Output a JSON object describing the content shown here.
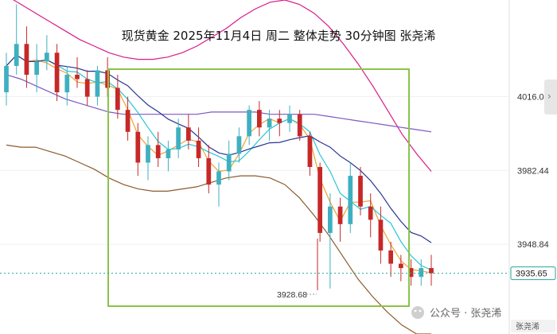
{
  "title": "现货黄金 2025年11月4日 周二 整体走势 30分钟图 张尧浠",
  "watermark": {
    "text": "公众号 · 张尧浠",
    "logo": "张尧浠"
  },
  "colors": {
    "up": "#3fb0c0",
    "down": "#c62828",
    "ma_fast": "#f0a030",
    "ma_mid": "#26c6da",
    "ma_slow": "#283593",
    "ma_long": "#7e57c2",
    "band_upper": "#d81b8c",
    "band_lower": "#8d5a2b",
    "box": "#8bc34a",
    "last_price": "#26a69a"
  },
  "chart_data": {
    "type": "candlestick",
    "title": "现货黄金 2025年11月4日 周二 整体走势 30分钟图 张尧浠",
    "y_axis_ticks": [
      "4016.04",
      "3982.44",
      "3948.84"
    ],
    "last_price": "3935.65",
    "annotation_low": "3928.68",
    "ylim": [
      3908,
      4060
    ],
    "bollinger_upper": [
      4062,
      4058,
      4054,
      4050,
      4046,
      4042,
      4039,
      4036,
      4034,
      4033,
      4033,
      4034,
      4036,
      4039,
      4043,
      4047,
      4052,
      4056,
      4059,
      4060,
      4058,
      4054,
      4048,
      4040,
      4031,
      4021,
      4010,
      3999,
      3990,
      3982
    ],
    "bollinger_middle": [
      4026,
      4024,
      4021,
      4018,
      4015,
      4013,
      4011,
      4009,
      4008,
      4008,
      4008,
      4008,
      4008,
      4008,
      4009,
      4009,
      4009,
      4009,
      4008,
      4008,
      4008,
      4008,
      4007,
      4006,
      4005,
      4004,
      4003,
      4002,
      4001,
      4000
    ],
    "bollinger_lower": [
      3994,
      3993,
      3993,
      3991,
      3989,
      3986,
      3983,
      3979,
      3976,
      3974,
      3973,
      3973,
      3974,
      3975,
      3977,
      3979,
      3980,
      3980,
      3979,
      3976,
      3970,
      3962,
      3953,
      3943,
      3933,
      3925,
      3918,
      3912,
      3908,
      3908
    ],
    "candles": [
      {
        "o": 4018,
        "h": 4036,
        "l": 4012,
        "c": 4030
      },
      {
        "o": 4030,
        "h": 4058,
        "l": 4026,
        "c": 4040
      },
      {
        "o": 4040,
        "h": 4048,
        "l": 4020,
        "c": 4026
      },
      {
        "o": 4026,
        "h": 4040,
        "l": 4018,
        "c": 4032
      },
      {
        "o": 4032,
        "h": 4044,
        "l": 4028,
        "c": 4036
      },
      {
        "o": 4036,
        "h": 4040,
        "l": 4014,
        "c": 4018
      },
      {
        "o": 4018,
        "h": 4030,
        "l": 4012,
        "c": 4026
      },
      {
        "o": 4026,
        "h": 4034,
        "l": 4020,
        "c": 4024
      },
      {
        "o": 4024,
        "h": 4028,
        "l": 4012,
        "c": 4016
      },
      {
        "o": 4016,
        "h": 4030,
        "l": 4012,
        "c": 4028
      },
      {
        "o": 4028,
        "h": 4034,
        "l": 4016,
        "c": 4020
      },
      {
        "o": 4020,
        "h": 4026,
        "l": 4006,
        "c": 4010
      },
      {
        "o": 4010,
        "h": 4016,
        "l": 3996,
        "c": 4000
      },
      {
        "o": 4000,
        "h": 4004,
        "l": 3980,
        "c": 3986
      },
      {
        "o": 3986,
        "h": 3998,
        "l": 3978,
        "c": 3994
      },
      {
        "o": 3994,
        "h": 4000,
        "l": 3984,
        "c": 3988
      },
      {
        "o": 3988,
        "h": 3996,
        "l": 3982,
        "c": 3992
      },
      {
        "o": 3992,
        "h": 4006,
        "l": 3988,
        "c": 4002
      },
      {
        "o": 4002,
        "h": 4008,
        "l": 3992,
        "c": 3996
      },
      {
        "o": 3996,
        "h": 4002,
        "l": 3984,
        "c": 3988
      },
      {
        "o": 3988,
        "h": 3994,
        "l": 3972,
        "c": 3976
      },
      {
        "o": 3976,
        "h": 3986,
        "l": 3966,
        "c": 3982
      },
      {
        "o": 3982,
        "h": 3996,
        "l": 3978,
        "c": 3990
      },
      {
        "o": 3990,
        "h": 4002,
        "l": 3986,
        "c": 3998
      },
      {
        "o": 3998,
        "h": 4012,
        "l": 3994,
        "c": 4010
      },
      {
        "o": 4010,
        "h": 4014,
        "l": 3998,
        "c": 4002
      },
      {
        "o": 4002,
        "h": 4010,
        "l": 3996,
        "c": 4006
      },
      {
        "o": 4006,
        "h": 4010,
        "l": 3998,
        "c": 4004
      },
      {
        "o": 4004,
        "h": 4012,
        "l": 4000,
        "c": 4008
      },
      {
        "o": 4008,
        "h": 4010,
        "l": 3996,
        "c": 3998
      },
      {
        "o": 3998,
        "h": 4000,
        "l": 3980,
        "c": 3984
      },
      {
        "o": 3984,
        "h": 3986,
        "l": 3950,
        "c": 3954
      },
      {
        "o": 3954,
        "h": 3972,
        "l": 3928.68,
        "c": 3966
      },
      {
        "o": 3966,
        "h": 3970,
        "l": 3950,
        "c": 3958
      },
      {
        "o": 3958,
        "h": 3986,
        "l": 3954,
        "c": 3980
      },
      {
        "o": 3980,
        "h": 3984,
        "l": 3962,
        "c": 3966
      },
      {
        "o": 3966,
        "h": 3972,
        "l": 3952,
        "c": 3960
      },
      {
        "o": 3960,
        "h": 3966,
        "l": 3940,
        "c": 3946
      },
      {
        "o": 3946,
        "h": 3950,
        "l": 3934,
        "c": 3940
      },
      {
        "o": 3940,
        "h": 3944,
        "l": 3932,
        "c": 3938
      },
      {
        "o": 3938,
        "h": 3942,
        "l": 3930,
        "c": 3934
      },
      {
        "o": 3934,
        "h": 3942,
        "l": 3930,
        "c": 3938
      },
      {
        "o": 3938,
        "h": 3944,
        "l": 3930,
        "c": 3935.65
      }
    ]
  }
}
